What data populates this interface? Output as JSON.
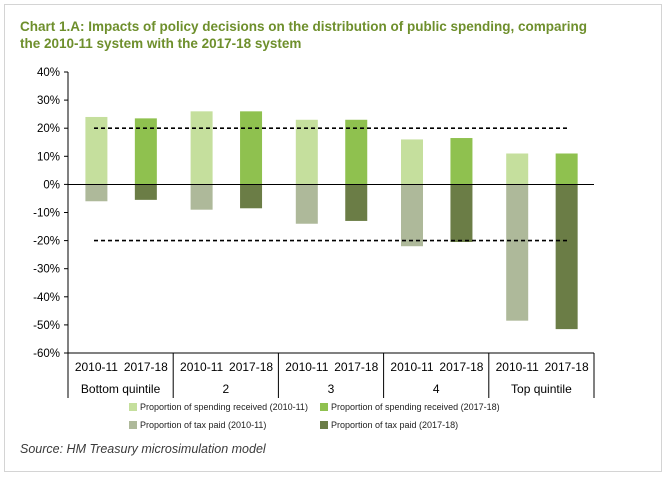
{
  "title_line1": "Chart 1.A: Impacts of policy decisions on the distribution of public spending, comparing",
  "title_line2": "the 2010-11 system with the 2017-18 system",
  "source": "Source:  HM Treasury microsimulation model",
  "colors": {
    "spending_2010": "#c5df9d",
    "spending_2017": "#8fc14f",
    "tax_2010": "#aeb99a",
    "tax_2017": "#6b7d46",
    "title": "#6e8f2c",
    "axis": "#000000"
  },
  "chart_data": {
    "type": "bar",
    "title": "Chart 1.A: Impacts of policy decisions on the distribution of public spending, comparing the 2010-11 system with the 2017-18 system",
    "groups": [
      "Bottom quintile",
      "2",
      "3",
      "4",
      "Top quintile"
    ],
    "subcategories": [
      "2010-11",
      "2017-18"
    ],
    "series": [
      {
        "name": "Proportion of spending received (2010-11)",
        "values": [
          24,
          26,
          23,
          16,
          11
        ]
      },
      {
        "name": "Proportion of spending received (2017-18)",
        "values": [
          23.5,
          26,
          23,
          16.5,
          11
        ]
      },
      {
        "name": "Proportion of tax paid (2010-11)",
        "values": [
          -6,
          -9,
          -14,
          -22,
          -48.5
        ]
      },
      {
        "name": "Proportion of tax paid (2017-18)",
        "values": [
          -5.5,
          -8.5,
          -13,
          -20.5,
          -51.5
        ]
      }
    ],
    "reference_lines": [
      20,
      -20
    ],
    "yticks": [
      "40%",
      "30%",
      "20%",
      "10%",
      "0%",
      "-10%",
      "-20%",
      "-30%",
      "-40%",
      "-50%",
      "-60%"
    ],
    "ylim": [
      -60,
      40
    ],
    "grid": "horizontal",
    "legend_position": "bottom"
  }
}
